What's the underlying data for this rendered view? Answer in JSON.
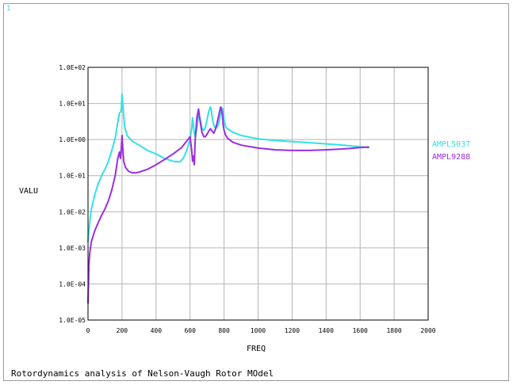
{
  "window": {
    "number": "1",
    "caption": "Rotordynamics analysis of Nelson-Vaugh Rotor MOdel"
  },
  "chart_data": {
    "type": "line",
    "xlabel": "FREQ",
    "ylabel": "VALU",
    "xlim": [
      0,
      2000
    ],
    "ylim": [
      1e-05,
      100
    ],
    "yscale": "log",
    "grid": true,
    "legend_position": "right",
    "x_ticks": [
      "0",
      "200",
      "400",
      "600",
      "800",
      "1000",
      "1200",
      "1400",
      "1600",
      "1800",
      "2000"
    ],
    "y_ticks": [
      "1.0E-05",
      "1.0E-04",
      "1.0E-03",
      "1.0E-02",
      "1.0E-01",
      "1.0E+00",
      "1.0E+01",
      "1.0E+02"
    ],
    "series": [
      {
        "name": "AMPL5037",
        "color": "#33e0e6",
        "x": [
          0,
          10,
          20,
          40,
          60,
          80,
          100,
          120,
          140,
          160,
          175,
          185,
          195,
          200,
          205,
          215,
          230,
          260,
          300,
          350,
          400,
          450,
          500,
          540,
          560,
          580,
          600,
          610,
          615,
          620,
          625,
          630,
          640,
          650,
          660,
          670,
          680,
          690,
          700,
          710,
          720,
          725,
          730,
          740,
          750,
          760,
          770,
          780,
          790,
          795,
          800,
          810,
          820,
          850,
          900,
          1000,
          1100,
          1200,
          1300,
          1400,
          1500,
          1600,
          1650
        ],
        "y": [
          0.0015,
          0.005,
          0.012,
          0.03,
          0.06,
          0.1,
          0.15,
          0.25,
          0.5,
          1.1,
          3.0,
          5.5,
          6.0,
          18.0,
          9.0,
          2.3,
          1.3,
          0.9,
          0.7,
          0.5,
          0.4,
          0.3,
          0.25,
          0.24,
          0.3,
          0.5,
          1.0,
          2.0,
          4.0,
          2.5,
          1.5,
          1.2,
          2.0,
          5.0,
          3.5,
          2.0,
          1.8,
          2.2,
          3.5,
          6.0,
          8.0,
          6.5,
          4.0,
          2.5,
          2.0,
          2.2,
          3.0,
          5.0,
          7.5,
          6.0,
          3.5,
          2.2,
          2.0,
          1.6,
          1.3,
          1.05,
          0.95,
          0.88,
          0.82,
          0.76,
          0.7,
          0.63,
          0.6
        ]
      },
      {
        "name": "AMPL9288",
        "color": "#9b2de0",
        "x": [
          0,
          5,
          10,
          20,
          40,
          60,
          80,
          100,
          120,
          140,
          160,
          175,
          185,
          190,
          195,
          200,
          205,
          210,
          220,
          240,
          260,
          280,
          300,
          350,
          400,
          450,
          500,
          550,
          580,
          600,
          610,
          615,
          620,
          625,
          630,
          640,
          650,
          660,
          670,
          680,
          690,
          700,
          710,
          720,
          730,
          740,
          750,
          760,
          770,
          780,
          790,
          795,
          800,
          810,
          820,
          850,
          900,
          1000,
          1100,
          1200,
          1300,
          1400,
          1500,
          1600,
          1650
        ],
        "y": [
          3e-05,
          0.0003,
          0.0007,
          0.0015,
          0.003,
          0.005,
          0.008,
          0.012,
          0.02,
          0.04,
          0.1,
          0.3,
          0.45,
          0.3,
          0.5,
          1.3,
          0.5,
          0.25,
          0.17,
          0.13,
          0.12,
          0.12,
          0.125,
          0.15,
          0.2,
          0.28,
          0.4,
          0.6,
          0.9,
          1.2,
          0.5,
          0.25,
          0.35,
          0.2,
          0.9,
          4.0,
          7.0,
          3.0,
          1.6,
          1.2,
          1.2,
          1.4,
          1.7,
          2.0,
          1.7,
          1.5,
          2.0,
          3.0,
          5.0,
          8.0,
          5.0,
          2.5,
          1.8,
          1.3,
          1.1,
          0.85,
          0.7,
          0.58,
          0.52,
          0.5,
          0.5,
          0.52,
          0.55,
          0.6,
          0.62
        ]
      }
    ]
  }
}
